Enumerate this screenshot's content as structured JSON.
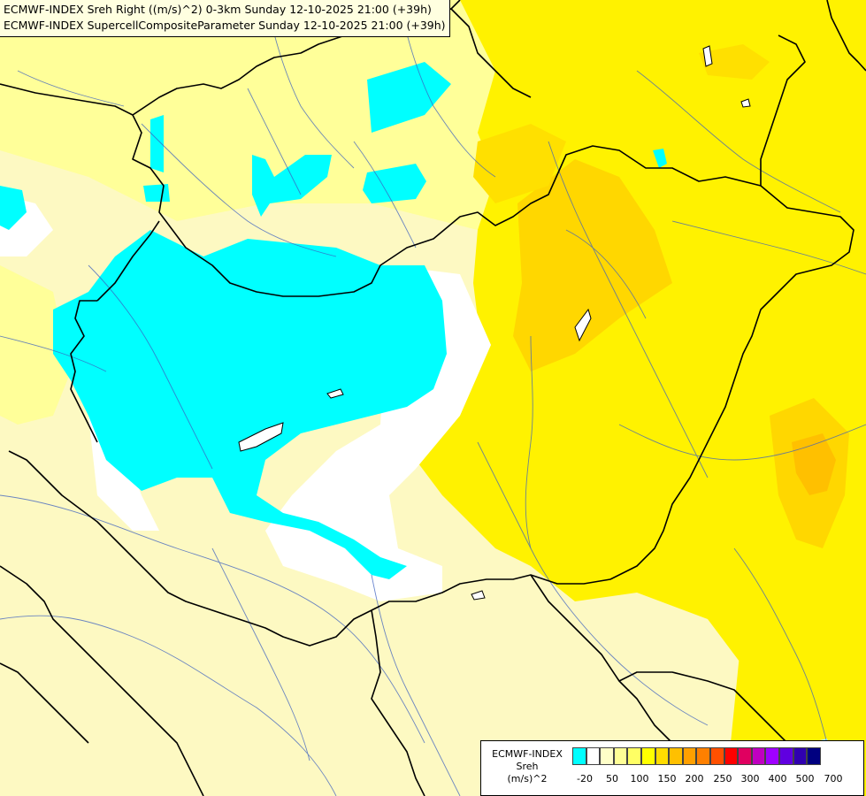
{
  "header": {
    "line1": "ECMWF-INDEX Sreh Right ((m/s)^2) 0-3km Sunday 12-10-2025 21:00 (+39h)",
    "line2": "ECMWF-INDEX SupercellCompositeParameter Sunday 12-10-2025 21:00 (+39h)"
  },
  "legend": {
    "model": "ECMWF-INDEX",
    "parameter": "Sreh",
    "unit": "(m/s)^2",
    "ticks": [
      "-20",
      "50",
      "100",
      "150",
      "200",
      "250",
      "300",
      "400",
      "500",
      "700"
    ],
    "colors": [
      "#00ffff",
      "#ffffff",
      "#ffffc8",
      "#ffff96",
      "#ffff64",
      "#ffff00",
      "#ffdc00",
      "#ffc000",
      "#ffa000",
      "#ff8000",
      "#ff5000",
      "#ff0000",
      "#e00060",
      "#c000c0",
      "#a000ff",
      "#6000e0",
      "#3000b0",
      "#000080"
    ]
  },
  "map": {
    "colors": {
      "background": "#fdf9c2",
      "light_yellow": "#ffff99",
      "yellow": "#fff200",
      "dark_yellow": "#ffd700",
      "orange": "#ffc000",
      "cyan": "#00ffff",
      "white": "#ffffff",
      "border": "#000000",
      "river": "#3b5fc0"
    }
  }
}
